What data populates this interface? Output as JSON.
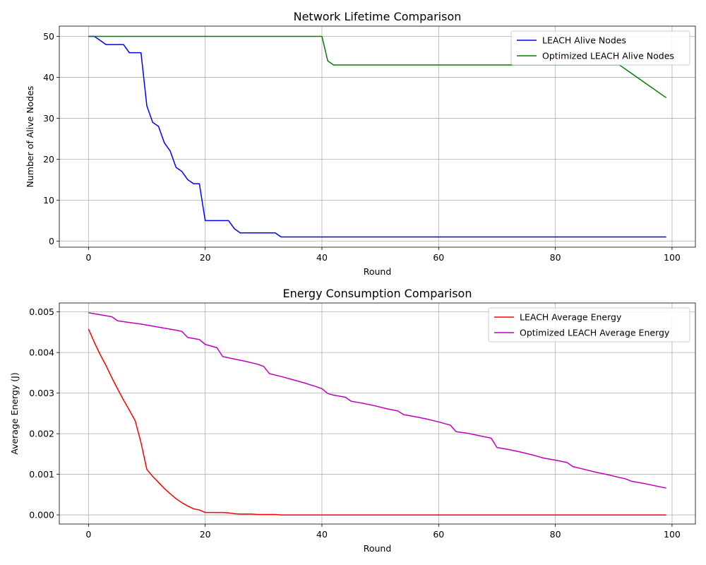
{
  "chart_data": [
    {
      "type": "line",
      "title": "Network Lifetime Comparison",
      "xlabel": "Round",
      "ylabel": "Number of Alive Nodes",
      "xlim": [
        -5,
        104
      ],
      "ylim": [
        -1.5,
        52.5
      ],
      "xticks": [
        0,
        20,
        40,
        60,
        80,
        100
      ],
      "yticks": [
        0,
        10,
        20,
        30,
        40,
        50
      ],
      "ytick_labels": [
        "0",
        "10",
        "20",
        "30",
        "40",
        "50"
      ],
      "grid": true,
      "legend_position": "top-right",
      "series": [
        {
          "name": "LEACH Alive Nodes",
          "color": "#0000ff",
          "x": [
            0,
            1,
            2,
            3,
            4,
            5,
            6,
            7,
            8,
            9,
            10,
            11,
            12,
            13,
            14,
            15,
            16,
            17,
            18,
            19,
            20,
            21,
            22,
            23,
            24,
            25,
            26,
            27,
            28,
            29,
            30,
            31,
            32,
            33,
            99
          ],
          "values": [
            50,
            50,
            49,
            48,
            48,
            48,
            48,
            46,
            46,
            46,
            33,
            29,
            28,
            24,
            22,
            18,
            17,
            15,
            14,
            14,
            5,
            5,
            5,
            5,
            5,
            3,
            2,
            2,
            2,
            2,
            2,
            2,
            2,
            1,
            1
          ]
        },
        {
          "name": "Optimized LEACH Alive Nodes",
          "color": "#008000",
          "x": [
            0,
            40,
            41,
            42,
            91,
            99
          ],
          "values": [
            50,
            50,
            44,
            43,
            43,
            35
          ]
        }
      ]
    },
    {
      "type": "line",
      "title": "Energy Consumption Comparison",
      "xlabel": "Round",
      "ylabel": "Average Energy (J)",
      "xlim": [
        -5,
        104
      ],
      "ylim": [
        -0.000225,
        0.00522
      ],
      "xticks": [
        0,
        20,
        40,
        60,
        80,
        100
      ],
      "yticks": [
        0,
        0.001,
        0.002,
        0.003,
        0.004,
        0.005
      ],
      "ytick_labels": [
        "0.000",
        "0.001",
        "0.002",
        "0.003",
        "0.004",
        "0.005"
      ],
      "grid": true,
      "legend_position": "top-right",
      "series": [
        {
          "name": "LEACH Average Energy",
          "color": "#ff0000",
          "x": [
            0,
            1,
            2,
            3,
            4,
            5,
            6,
            7,
            8,
            9,
            10,
            11,
            12,
            13,
            14,
            15,
            16,
            17,
            18,
            19,
            20,
            21,
            22,
            23,
            24,
            25,
            26,
            27,
            28,
            29,
            30,
            31,
            32,
            33,
            99
          ],
          "values": [
            0.00458,
            0.00425,
            0.00395,
            0.00368,
            0.00338,
            0.0031,
            0.00283,
            0.00258,
            0.00232,
            0.00178,
            0.00112,
            0.00095,
            0.0008,
            0.00065,
            0.00052,
            0.0004,
            0.0003,
            0.00022,
            0.00015,
            0.00012,
            6e-05,
            6e-05,
            6e-05,
            6e-05,
            5e-05,
            3e-05,
            2e-05,
            2e-05,
            2e-05,
            1e-05,
            1e-05,
            1e-05,
            1e-05,
            0.0,
            0.0
          ]
        },
        {
          "name": "Optimized LEACH Average Energy",
          "color": "#bf00bf",
          "x": [
            0,
            2,
            4,
            5,
            7,
            9,
            11,
            13,
            15,
            16,
            17,
            19,
            20,
            22,
            23,
            25,
            27,
            29,
            30,
            31,
            33,
            35,
            37,
            39,
            40,
            41,
            42,
            44,
            45,
            47,
            49,
            51,
            53,
            54,
            56,
            58,
            60,
            62,
            63,
            65,
            67,
            69,
            70,
            72,
            74,
            76,
            78,
            80,
            82,
            83,
            85,
            87,
            89,
            91,
            92,
            93,
            95,
            97,
            99
          ],
          "values": [
            0.00498,
            0.00493,
            0.00488,
            0.00478,
            0.00474,
            0.0047,
            0.00465,
            0.0046,
            0.00455,
            0.00452,
            0.00437,
            0.00432,
            0.0042,
            0.00412,
            0.0039,
            0.00384,
            0.00378,
            0.00371,
            0.00366,
            0.00348,
            0.00341,
            0.00333,
            0.00325,
            0.00316,
            0.00311,
            0.00299,
            0.00295,
            0.0029,
            0.0028,
            0.00275,
            0.00269,
            0.00262,
            0.00256,
            0.00247,
            0.00242,
            0.00236,
            0.00229,
            0.00221,
            0.00205,
            0.00201,
            0.00195,
            0.00189,
            0.00166,
            0.00161,
            0.00155,
            0.00148,
            0.0014,
            0.00135,
            0.00129,
            0.00119,
            0.00112,
            0.00105,
            0.00099,
            0.00092,
            0.00089,
            0.00083,
            0.00078,
            0.00072,
            0.00066
          ]
        }
      ]
    }
  ]
}
